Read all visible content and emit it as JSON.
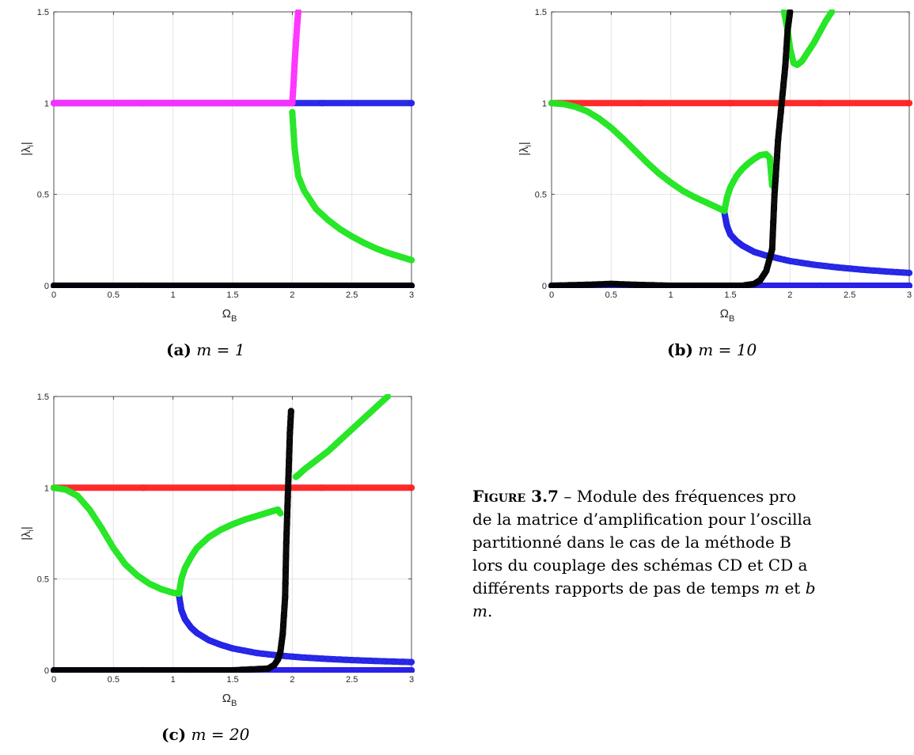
{
  "chart_data": [
    {
      "type": "scatter",
      "xlabel": "Ω_B",
      "ylabel": "|λ_i|",
      "xlim": [
        0,
        3
      ],
      "ylim": [
        0,
        1.5
      ],
      "xticks": [
        "0",
        "0.5",
        "1",
        "1.5",
        "2",
        "2.5",
        "3"
      ],
      "yticks": [
        "0",
        "0.5",
        "1",
        "1.5"
      ],
      "grid": true,
      "caption": {
        "tag": "(a)",
        "equation": "m = 1"
      },
      "colors": {
        "blue": "#2020e6",
        "green": "#22e622",
        "magenta": "#ff30ff",
        "black": "#000000"
      },
      "series": [
        {
          "color": "blue",
          "x": [
            0,
            3
          ],
          "y": [
            1,
            1
          ]
        },
        {
          "color": "magenta",
          "x": [
            0,
            2
          ],
          "y": [
            1,
            1
          ]
        },
        {
          "color": "magenta",
          "x": [
            2,
            2.01,
            2.02,
            2.03,
            2.04,
            2.05
          ],
          "y": [
            1,
            1.1,
            1.22,
            1.32,
            1.42,
            1.5
          ]
        },
        {
          "color": "green",
          "x": [
            2,
            2.02,
            2.05,
            2.1,
            2.2,
            2.3,
            2.4,
            2.5,
            2.6,
            2.7,
            2.8,
            2.9,
            3
          ],
          "y": [
            0.95,
            0.75,
            0.6,
            0.52,
            0.42,
            0.36,
            0.31,
            0.27,
            0.235,
            0.205,
            0.18,
            0.16,
            0.14
          ]
        },
        {
          "color": "blue",
          "x": [
            0,
            3
          ],
          "y": [
            0,
            0
          ]
        },
        {
          "color": "black",
          "x": [
            0,
            3
          ],
          "y": [
            0,
            0
          ]
        }
      ]
    },
    {
      "type": "scatter",
      "xlabel": "Ω_B",
      "ylabel": "|λ_i|",
      "xlim": [
        0,
        3
      ],
      "ylim": [
        0,
        1.5
      ],
      "xticks": [
        "0",
        "0.5",
        "1",
        "1.5",
        "2",
        "2.5",
        "3"
      ],
      "yticks": [
        "0",
        "0.5",
        "1",
        "1.5"
      ],
      "grid": true,
      "caption": {
        "tag": "(b)",
        "equation": "m = 10"
      },
      "colors": {
        "red": "#ff2020",
        "blue": "#2020e6",
        "green": "#22e622",
        "magenta": "#ff30ff",
        "black": "#000000"
      },
      "series": [
        {
          "color": "red",
          "x": [
            0,
            3
          ],
          "y": [
            1,
            1
          ]
        },
        {
          "color": "magenta",
          "x": [
            0,
            3
          ],
          "y": [
            0,
            0
          ]
        },
        {
          "color": "blue",
          "x": [
            0,
            3
          ],
          "y": [
            0,
            0
          ]
        },
        {
          "color": "blue",
          "x": [
            1.45,
            1.47,
            1.5,
            1.55,
            1.6,
            1.7,
            1.8,
            1.9,
            2.0,
            2.2,
            2.4,
            2.6,
            2.8,
            3
          ],
          "y": [
            0.4,
            0.33,
            0.28,
            0.245,
            0.22,
            0.185,
            0.165,
            0.15,
            0.135,
            0.115,
            0.1,
            0.088,
            0.078,
            0.07
          ]
        },
        {
          "color": "green",
          "x": [
            0,
            0.1,
            0.2,
            0.3,
            0.4,
            0.5,
            0.6,
            0.7,
            0.8,
            0.9,
            1.0,
            1.1,
            1.2,
            1.3,
            1.4,
            1.45
          ],
          "y": [
            1,
            0.995,
            0.98,
            0.955,
            0.915,
            0.865,
            0.805,
            0.74,
            0.675,
            0.615,
            0.565,
            0.52,
            0.485,
            0.455,
            0.425,
            0.41
          ]
        },
        {
          "color": "green",
          "x": [
            1.45,
            1.47,
            1.5,
            1.55,
            1.6,
            1.65,
            1.7,
            1.75,
            1.8,
            1.83,
            1.85
          ],
          "y": [
            0.41,
            0.48,
            0.54,
            0.6,
            0.64,
            0.67,
            0.695,
            0.715,
            0.72,
            0.7,
            0.55
          ]
        },
        {
          "color": "green",
          "x": [
            1.95,
            1.98,
            2.0,
            2.03,
            2.06,
            2.1,
            2.15,
            2.2,
            2.25,
            2.3,
            2.35
          ],
          "y": [
            1.5,
            1.4,
            1.3,
            1.22,
            1.21,
            1.23,
            1.28,
            1.33,
            1.39,
            1.45,
            1.5
          ]
        },
        {
          "color": "black",
          "x": [
            0,
            0.3,
            0.5,
            0.7,
            1.0,
            1.3,
            1.6,
            1.7,
            1.75,
            1.8,
            1.83,
            1.85,
            1.87,
            1.88,
            1.9,
            1.93,
            1.96,
            1.98,
            2.0
          ],
          "y": [
            0,
            0.005,
            0.01,
            0.005,
            0,
            0,
            0,
            0.01,
            0.03,
            0.08,
            0.15,
            0.2,
            0.5,
            0.6,
            0.8,
            1.0,
            1.2,
            1.4,
            1.5
          ]
        }
      ]
    },
    {
      "type": "scatter",
      "xlabel": "Ω_B",
      "ylabel": "|λ_i|",
      "xlim": [
        0,
        3
      ],
      "ylim": [
        0,
        1.5
      ],
      "xticks": [
        "0",
        "0.5",
        "1",
        "1.5",
        "2",
        "2.5",
        "3"
      ],
      "yticks": [
        "0",
        "0.5",
        "1",
        "1.5"
      ],
      "grid": true,
      "caption": {
        "tag": "(c)",
        "equation": "m = 20"
      },
      "colors": {
        "red": "#ff2020",
        "blue": "#2020e6",
        "green": "#22e622",
        "magenta": "#ff30ff",
        "black": "#000000"
      },
      "series": [
        {
          "color": "red",
          "x": [
            0,
            3
          ],
          "y": [
            1,
            1
          ]
        },
        {
          "color": "magenta",
          "x": [
            0,
            3
          ],
          "y": [
            0,
            0
          ]
        },
        {
          "color": "blue",
          "x": [
            0,
            3
          ],
          "y": [
            0,
            0
          ]
        },
        {
          "color": "blue",
          "x": [
            1.05,
            1.07,
            1.1,
            1.15,
            1.2,
            1.3,
            1.4,
            1.5,
            1.7,
            1.9,
            2.1,
            2.3,
            2.5,
            2.7,
            3
          ],
          "y": [
            0.41,
            0.33,
            0.28,
            0.235,
            0.205,
            0.165,
            0.14,
            0.12,
            0.095,
            0.08,
            0.07,
            0.062,
            0.056,
            0.051,
            0.045
          ]
        },
        {
          "color": "green",
          "x": [
            0,
            0.1,
            0.2,
            0.3,
            0.4,
            0.5,
            0.6,
            0.7,
            0.8,
            0.9,
            1.0,
            1.05
          ],
          "y": [
            1,
            0.99,
            0.955,
            0.88,
            0.78,
            0.67,
            0.58,
            0.52,
            0.475,
            0.445,
            0.425,
            0.42
          ]
        },
        {
          "color": "green",
          "x": [
            1.05,
            1.07,
            1.1,
            1.15,
            1.2,
            1.3,
            1.4,
            1.5,
            1.6,
            1.7,
            1.8,
            1.85,
            1.88,
            1.9
          ],
          "y": [
            0.42,
            0.5,
            0.56,
            0.62,
            0.67,
            0.73,
            0.77,
            0.8,
            0.825,
            0.845,
            0.865,
            0.875,
            0.88,
            0.86
          ]
        },
        {
          "color": "green",
          "x": [
            2.03,
            2.05,
            2.1,
            2.2,
            2.3,
            2.4,
            2.5,
            2.6,
            2.7,
            2.8
          ],
          "y": [
            1.06,
            1.07,
            1.1,
            1.15,
            1.2,
            1.26,
            1.32,
            1.38,
            1.44,
            1.5
          ]
        },
        {
          "color": "black",
          "x": [
            0,
            0.5,
            1.0,
            1.5,
            1.8,
            1.85,
            1.88,
            1.9,
            1.92,
            1.94,
            1.95,
            1.96,
            1.97,
            1.98,
            1.99
          ],
          "y": [
            0,
            0,
            0,
            0,
            0.01,
            0.03,
            0.06,
            0.1,
            0.2,
            0.4,
            0.7,
            0.9,
            1.1,
            1.3,
            1.42
          ]
        }
      ]
    }
  ],
  "caption": {
    "label": "Figure 3.7",
    "lines": [
      "– Module des fréquences pro",
      "de la matrice d’amplification pour l’oscilla",
      "partitionné dans le cas de la méthode B",
      "lors du couplage des schémas CD et CD a",
      "différents rapports de pas de temps ",
      "."
    ],
    "var_m": "m",
    "word_et": " et ",
    "var_b": "b"
  }
}
